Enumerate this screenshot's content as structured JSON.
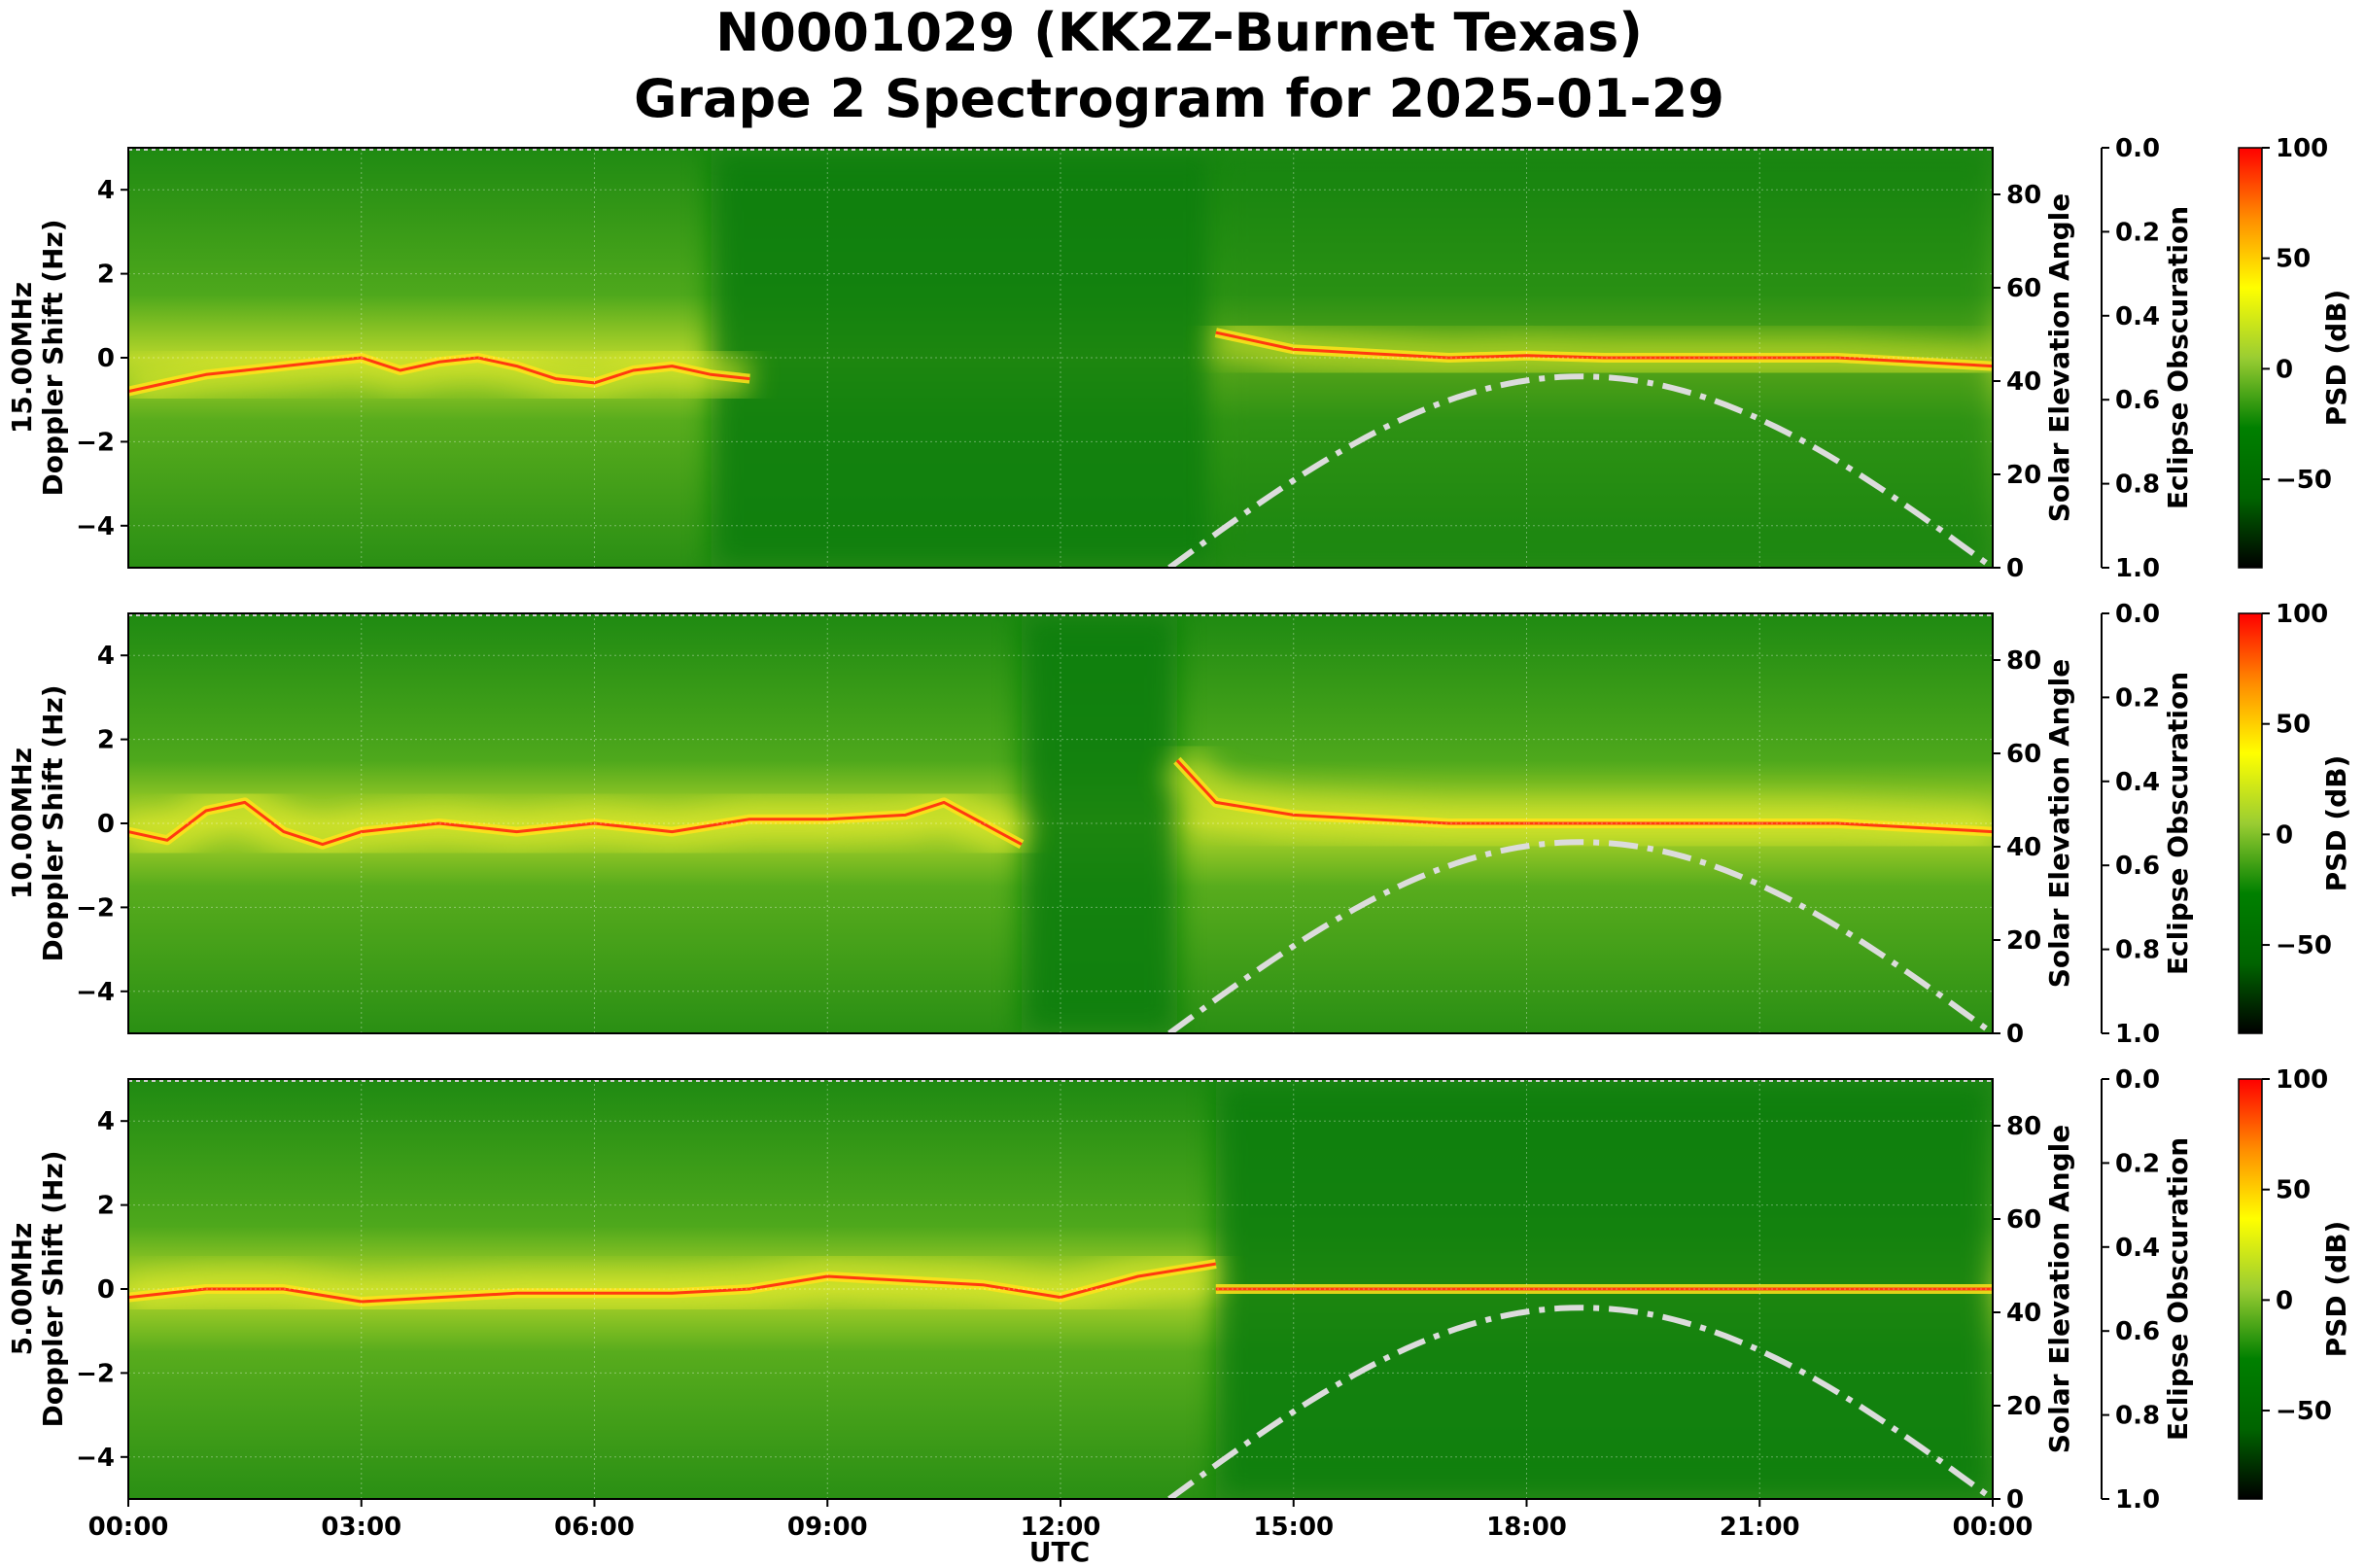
{
  "title_line1": "N0001029 (KK2Z-Burnet Texas)",
  "title_line2": "Grape 2 Spectrogram for 2025-01-29",
  "chart_data": {
    "type": "heatmap",
    "panels": [
      {
        "frequency_label": "15.00MHz",
        "ylabel": "Doppler Shift (Hz)",
        "trace": [
          [
            0,
            -0.8
          ],
          [
            0.5,
            -0.6
          ],
          [
            1,
            -0.4
          ],
          [
            1.5,
            -0.3
          ],
          [
            2,
            -0.2
          ],
          [
            2.5,
            -0.1
          ],
          [
            3,
            0
          ],
          [
            3.5,
            -0.3
          ],
          [
            4,
            -0.1
          ],
          [
            4.5,
            0
          ],
          [
            5,
            -0.2
          ],
          [
            5.5,
            -0.5
          ],
          [
            6,
            -0.6
          ],
          [
            6.5,
            -0.3
          ],
          [
            7,
            -0.2
          ],
          [
            7.5,
            -0.4
          ],
          [
            8,
            -0.5
          ]
        ],
        "trace2": [
          [
            14,
            0.6
          ],
          [
            15,
            0.2
          ],
          [
            16,
            0.1
          ],
          [
            17,
            0
          ],
          [
            18,
            0.05
          ],
          [
            19,
            0
          ],
          [
            20,
            0
          ],
          [
            21,
            0
          ],
          [
            22,
            0
          ],
          [
            23,
            -0.1
          ],
          [
            24,
            -0.2
          ]
        ]
      },
      {
        "frequency_label": "10.00MHz",
        "ylabel": "Doppler Shift (Hz)",
        "trace": [
          [
            0,
            -0.2
          ],
          [
            0.5,
            -0.4
          ],
          [
            1,
            0.3
          ],
          [
            1.5,
            0.5
          ],
          [
            2,
            -0.2
          ],
          [
            2.5,
            -0.5
          ],
          [
            3,
            -0.2
          ],
          [
            3.5,
            -0.1
          ],
          [
            4,
            0
          ],
          [
            5,
            -0.2
          ],
          [
            6,
            0
          ],
          [
            7,
            -0.2
          ],
          [
            8,
            0.1
          ],
          [
            9,
            0.1
          ],
          [
            10,
            0.2
          ],
          [
            10.5,
            0.5
          ],
          [
            11,
            0
          ],
          [
            11.5,
            -0.5
          ]
        ],
        "trace2": [
          [
            13.5,
            1.5
          ],
          [
            14,
            0.5
          ],
          [
            15,
            0.2
          ],
          [
            16,
            0.1
          ],
          [
            17,
            0
          ],
          [
            18,
            0
          ],
          [
            19,
            0
          ],
          [
            20,
            0
          ],
          [
            21,
            0
          ],
          [
            22,
            0
          ],
          [
            23,
            -0.1
          ],
          [
            24,
            -0.2
          ]
        ]
      },
      {
        "frequency_label": "5.00MHz",
        "ylabel": "Doppler Shift (Hz)",
        "trace": [
          [
            0,
            -0.2
          ],
          [
            1,
            0
          ],
          [
            2,
            0
          ],
          [
            3,
            -0.3
          ],
          [
            4,
            -0.2
          ],
          [
            5,
            -0.1
          ],
          [
            6,
            -0.1
          ],
          [
            7,
            -0.1
          ],
          [
            8,
            0
          ],
          [
            9,
            0.3
          ],
          [
            10,
            0.2
          ],
          [
            11,
            0.1
          ],
          [
            12,
            -0.2
          ],
          [
            13,
            0.3
          ],
          [
            14,
            0.6
          ]
        ],
        "trace2": [
          [
            14,
            0
          ],
          [
            16,
            0
          ],
          [
            18,
            0
          ],
          [
            20,
            0
          ],
          [
            22,
            0
          ],
          [
            24,
            0
          ]
        ]
      }
    ],
    "x_ticks": [
      "00:00",
      "03:00",
      "06:00",
      "09:00",
      "12:00",
      "15:00",
      "18:00",
      "21:00",
      "00:00"
    ],
    "x_range_hours": [
      0,
      24
    ],
    "xlabel": "UTC",
    "y_range": [
      -5,
      5
    ],
    "y_ticks": [
      "4",
      "2",
      "0",
      "−2",
      "−4"
    ],
    "solar_axis": {
      "label": "Solar Elevation Angle",
      "ticks": [
        "80",
        "60",
        "40",
        "20",
        "0"
      ],
      "range": [
        0,
        90
      ]
    },
    "eclipse_axis": {
      "label": "Eclipse Obscuration",
      "ticks": [
        "0.0",
        "0.2",
        "0.4",
        "0.6",
        "0.8",
        "1.0"
      ],
      "range": [
        0,
        1
      ]
    },
    "colorbar": {
      "label": "PSD (dB)",
      "ticks": [
        "100",
        "50",
        "0",
        "−50"
      ],
      "range": [
        -90,
        100
      ],
      "colors": [
        "#000000",
        "#006400",
        "#008000",
        "#9acd32",
        "#ffff00",
        "#ff8c00",
        "#ff0000"
      ]
    },
    "solar_elevation_curve": {
      "sunrise_hour": 13.4,
      "peak_hour": 18.7,
      "sunset_hour": 24.0,
      "peak_deg": 41,
      "style": "dash-dot",
      "color": "#dcdcdc"
    },
    "background_colors": {
      "quiet": "#0a7d0a",
      "active": "#b8d82a",
      "trace": "#ff3a10"
    }
  }
}
